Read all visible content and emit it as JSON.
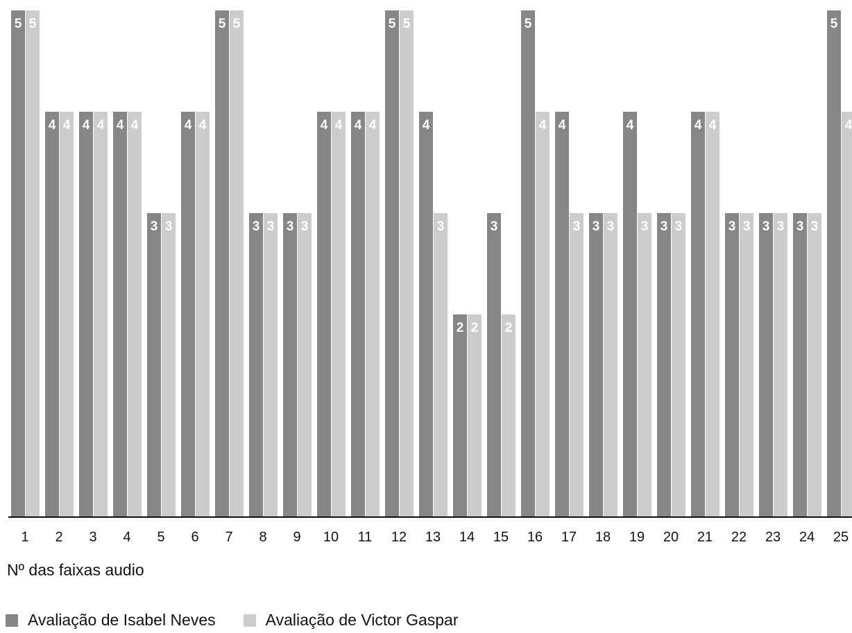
{
  "chart_data": {
    "type": "bar",
    "categories": [
      "1",
      "2",
      "3",
      "4",
      "5",
      "6",
      "7",
      "8",
      "9",
      "10",
      "11",
      "12",
      "13",
      "14",
      "15",
      "16",
      "17",
      "18",
      "19",
      "20",
      "21",
      "22",
      "23",
      "24",
      "25"
    ],
    "series": [
      {
        "name": "Avaliação de Isabel Neves",
        "values": [
          5,
          4,
          4,
          4,
          3,
          4,
          5,
          3,
          3,
          4,
          4,
          5,
          4,
          2,
          3,
          5,
          4,
          3,
          4,
          3,
          4,
          3,
          3,
          3,
          5
        ]
      },
      {
        "name": "Avaliação de Victor Gaspar",
        "values": [
          5,
          4,
          4,
          4,
          3,
          4,
          5,
          3,
          3,
          4,
          4,
          5,
          3,
          2,
          2,
          4,
          3,
          3,
          3,
          3,
          4,
          3,
          3,
          3,
          4
        ]
      }
    ],
    "xlabel": "Nº das faixas audio",
    "ylabel": "",
    "ylim": [
      0,
      5
    ],
    "grid": false,
    "legend_position": "bottom-left",
    "colors": {
      "series0": "#868686",
      "series1": "#cccccc",
      "label": "#ffffff",
      "axis": "#111111"
    }
  }
}
